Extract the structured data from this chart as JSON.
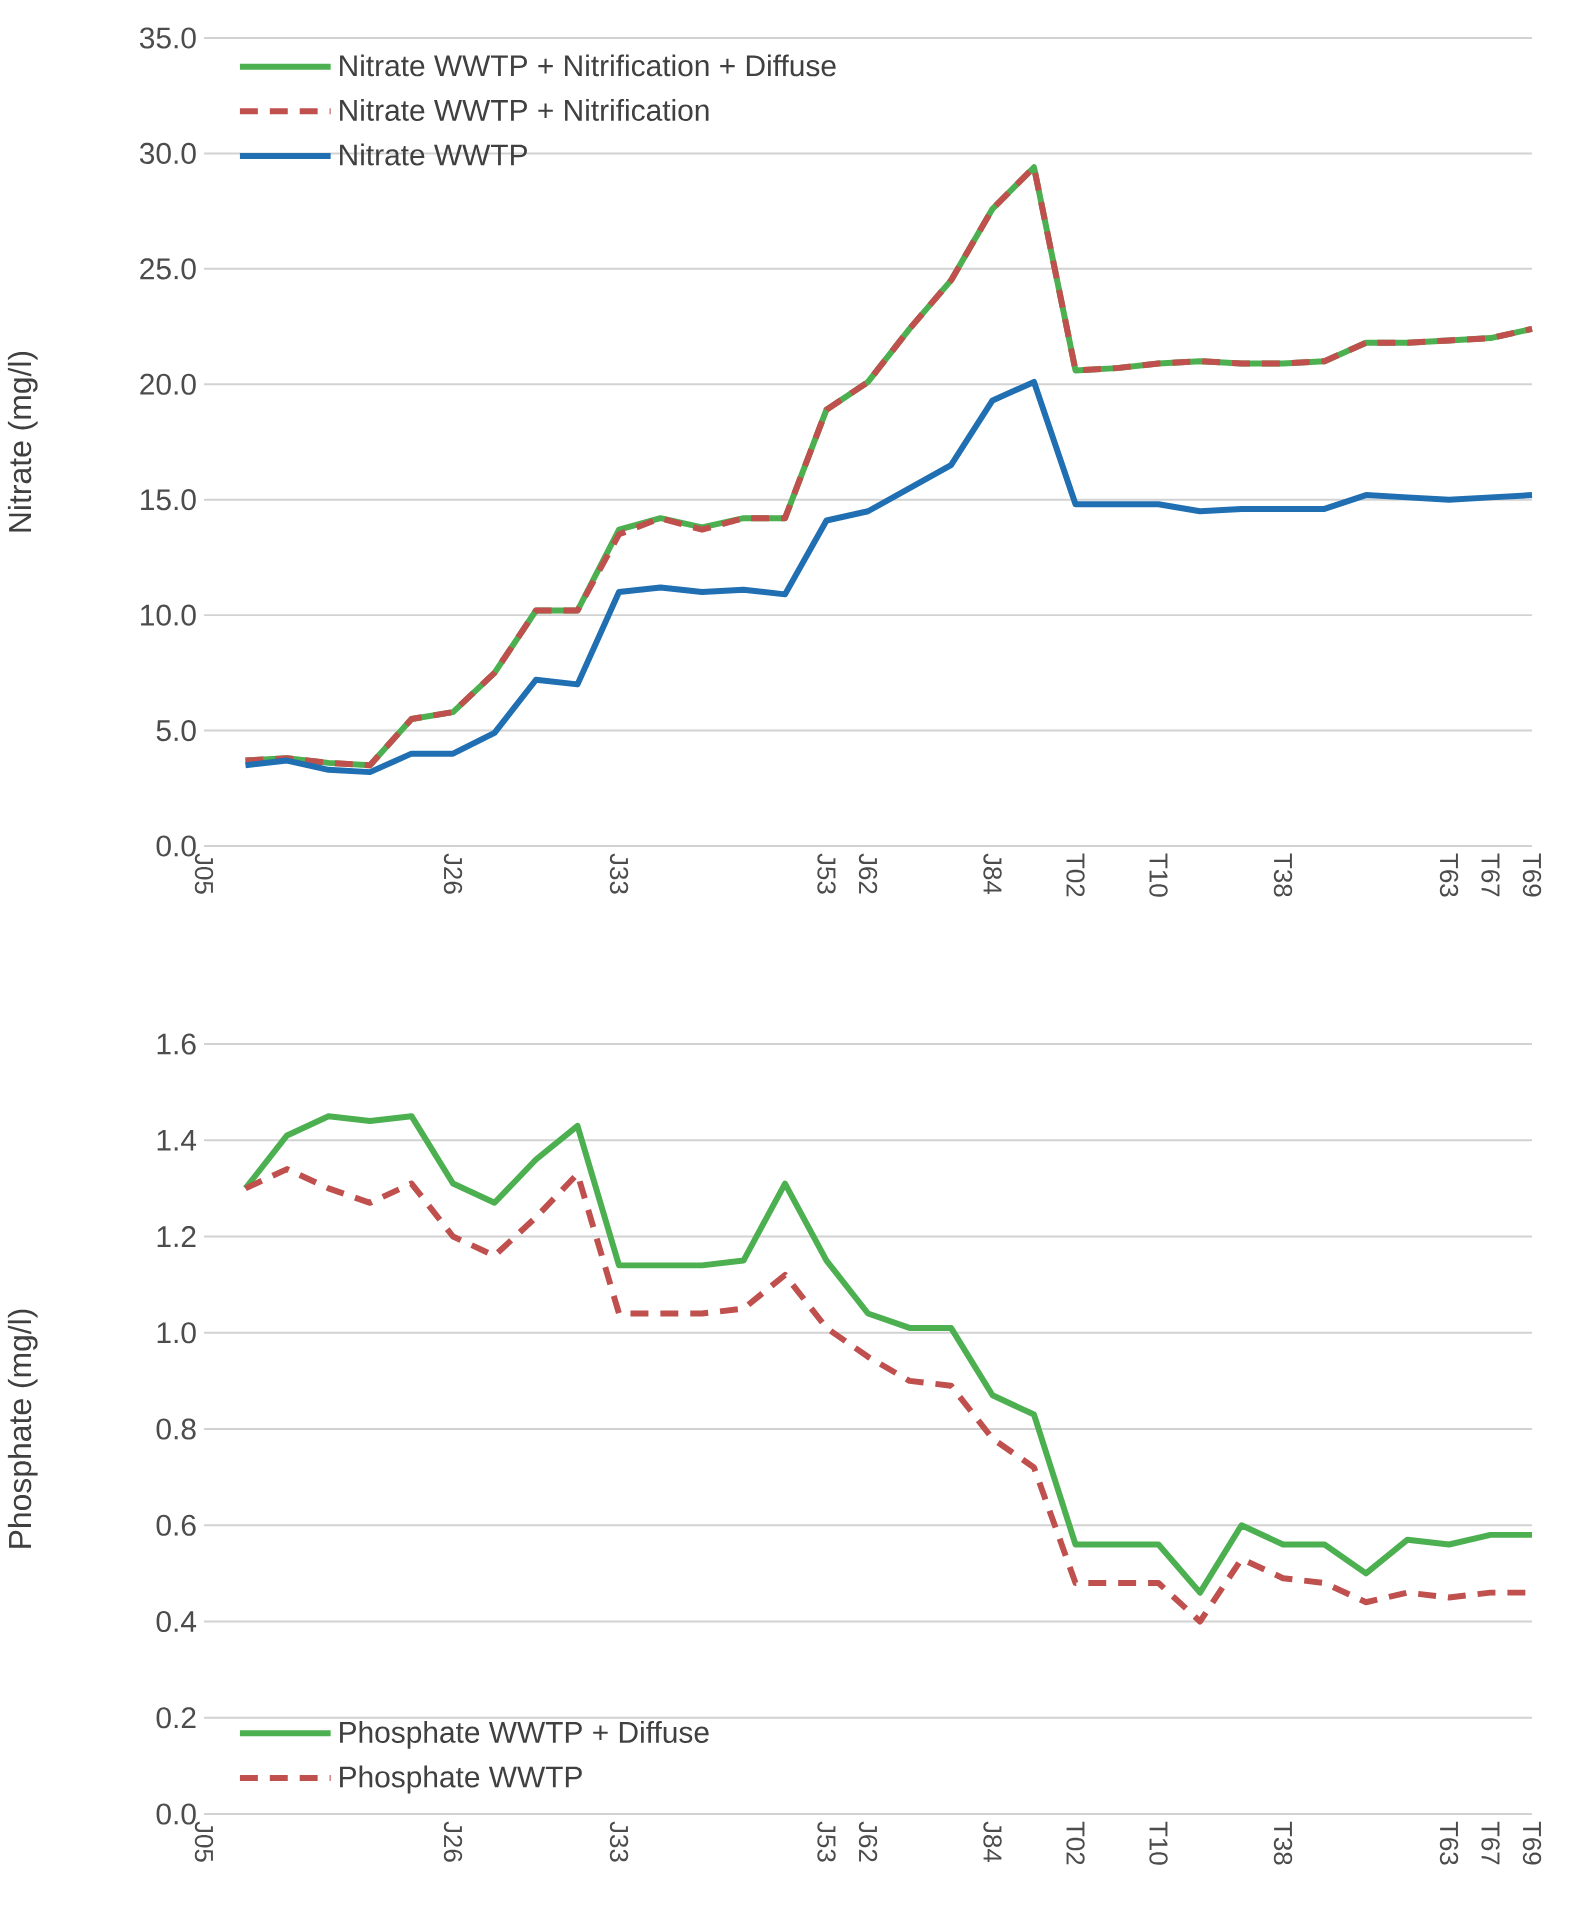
{
  "chart_data": [
    {
      "type": "line",
      "ylabel": "Nitrate (mg/l)",
      "categories": [
        "J05",
        null,
        null,
        null,
        null,
        null,
        "J26",
        null,
        null,
        null,
        "J33",
        null,
        null,
        null,
        null,
        "J53",
        "J62",
        null,
        null,
        "J84",
        null,
        "T02",
        null,
        "T10",
        null,
        null,
        "T38",
        null,
        null,
        null,
        "T63",
        "T67",
        "T69"
      ],
      "series": [
        {
          "name": "Nitrate WWTP + Nitrification + Diffuse",
          "color": "#4cb050",
          "line_style": "solid",
          "values": [
            null,
            3.7,
            3.8,
            3.6,
            3.5,
            5.5,
            5.8,
            7.5,
            10.2,
            10.2,
            13.7,
            14.2,
            13.8,
            14.2,
            14.2,
            18.9,
            20.1,
            22.4,
            24.5,
            27.6,
            29.4,
            20.6,
            20.7,
            20.9,
            21.0,
            20.9,
            20.9,
            21.0,
            21.8,
            21.8,
            21.9,
            22.0,
            22.4
          ]
        },
        {
          "name": "Nitrate WWTP + Nitrification",
          "color": "#c0504d",
          "line_style": "dashed",
          "values": [
            null,
            3.7,
            3.8,
            3.6,
            3.5,
            5.5,
            5.8,
            7.5,
            10.2,
            10.2,
            13.5,
            14.2,
            13.7,
            14.2,
            14.2,
            18.9,
            20.1,
            22.4,
            24.5,
            27.6,
            29.4,
            20.6,
            20.7,
            20.9,
            21.0,
            20.9,
            20.9,
            21.0,
            21.8,
            21.8,
            21.9,
            22.0,
            22.4
          ]
        },
        {
          "name": "Nitrate WWTP",
          "color": "#1f6fb2",
          "line_style": "solid",
          "values": [
            null,
            3.5,
            3.7,
            3.3,
            3.2,
            4.0,
            4.0,
            4.9,
            7.2,
            7.0,
            11.0,
            11.2,
            11.0,
            11.1,
            10.9,
            14.1,
            14.5,
            15.5,
            16.5,
            19.3,
            20.1,
            14.8,
            14.8,
            14.8,
            14.5,
            14.6,
            14.6,
            14.6,
            15.2,
            15.1,
            15.0,
            15.1,
            15.2
          ]
        }
      ],
      "ylim": [
        0,
        35
      ],
      "yticks": [
        {
          "value": 0,
          "label": "0.0"
        },
        {
          "value": 5,
          "label": "5.0"
        },
        {
          "value": 10,
          "label": "10.0"
        },
        {
          "value": 15,
          "label": "15.0"
        },
        {
          "value": 20,
          "label": "20.0"
        },
        {
          "value": 25,
          "label": "25.0"
        },
        {
          "value": 30,
          "label": "30.0"
        },
        {
          "value": 35,
          "label": "35.0"
        }
      ],
      "grid": "y",
      "legend": "top left"
    },
    {
      "type": "line",
      "ylabel": "Phosphate (mg/l)",
      "categories": [
        "J05",
        null,
        null,
        null,
        null,
        null,
        "J26",
        null,
        null,
        null,
        "J33",
        null,
        null,
        null,
        null,
        "J53",
        "J62",
        null,
        null,
        "J84",
        null,
        "T02",
        null,
        "T10",
        null,
        null,
        "T38",
        null,
        null,
        null,
        "T63",
        "T67",
        "T69"
      ],
      "series": [
        {
          "name": "Phosphate WWTP + Diffuse",
          "color": "#4cb050",
          "line_style": "solid",
          "values": [
            null,
            1.3,
            1.41,
            1.45,
            1.44,
            1.45,
            1.31,
            1.27,
            1.36,
            1.43,
            1.14,
            1.14,
            1.14,
            1.15,
            1.31,
            1.15,
            1.04,
            1.01,
            1.01,
            0.87,
            0.83,
            0.56,
            0.56,
            0.56,
            0.46,
            0.6,
            0.56,
            0.56,
            0.5,
            0.57,
            0.56,
            0.58,
            0.58
          ]
        },
        {
          "name": "Phosphate WWTP",
          "color": "#c0504d",
          "line_style": "dashed",
          "values": [
            null,
            1.3,
            1.34,
            1.3,
            1.27,
            1.31,
            1.2,
            1.16,
            1.24,
            1.33,
            1.04,
            1.04,
            1.04,
            1.05,
            1.12,
            1.01,
            0.95,
            0.9,
            0.89,
            0.78,
            0.72,
            0.48,
            0.48,
            0.48,
            0.4,
            0.53,
            0.49,
            0.48,
            0.44,
            0.46,
            0.45,
            0.46,
            0.46
          ]
        }
      ],
      "ylim": [
        0,
        1.6
      ],
      "yticks": [
        {
          "value": 0,
          "label": "0.0"
        },
        {
          "value": 0.2,
          "label": "0.2"
        },
        {
          "value": 0.4,
          "label": "0.4"
        },
        {
          "value": 0.6,
          "label": "0.6"
        },
        {
          "value": 0.8,
          "label": "0.8"
        },
        {
          "value": 1.0,
          "label": "1.0"
        },
        {
          "value": 1.2,
          "label": "1.2"
        },
        {
          "value": 1.4,
          "label": "1.4"
        },
        {
          "value": 1.6,
          "label": "1.6"
        }
      ],
      "grid": "y",
      "legend": "bottom left"
    }
  ]
}
